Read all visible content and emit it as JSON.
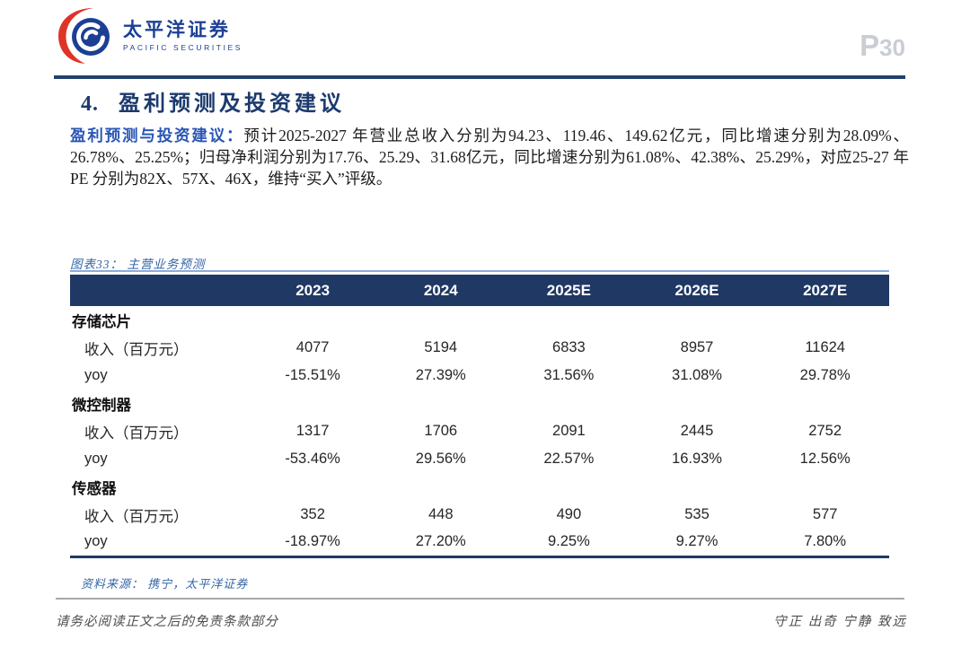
{
  "header": {
    "logo": {
      "cn": "太平洋证券",
      "en": "PACIFIC SECURITIES"
    },
    "page": {
      "prefix": "P",
      "number": "30"
    }
  },
  "title": {
    "number": "4.",
    "text": "盈利预测及投资建议"
  },
  "summary": {
    "lead": "盈利预测与投资建议：",
    "body": "预计2025-2027 年营业总收入分别为94.23、119.46、149.62亿元，同比增速分别为28.09%、26.78%、25.25%；归母净利润分别为17.76、25.29、31.68亿元，同比增速分别为61.08%、42.38%、25.29%，对应25-27 年PE 分别为82X、57X、46X，维持“买入”评级。"
  },
  "figure": {
    "caption": "图表33： 主营业务预测",
    "source": "资料来源： 携宁，太平洋证券"
  },
  "chart_data": {
    "type": "table",
    "title": "主营业务预测",
    "columns": [
      "",
      "2023",
      "2024",
      "2025E",
      "2026E",
      "2027E"
    ],
    "rows": [
      {
        "label": "存储芯片",
        "type": "category",
        "values": [
          "",
          "",
          "",
          "",
          ""
        ]
      },
      {
        "label": "收入（百万元）",
        "type": "data",
        "values": [
          "4077",
          "5194",
          "6833",
          "8957",
          "11624"
        ]
      },
      {
        "label": "yoy",
        "type": "data",
        "values": [
          "-15.51%",
          "27.39%",
          "31.56%",
          "31.08%",
          "29.78%"
        ]
      },
      {
        "label": "微控制器",
        "type": "category",
        "values": [
          "",
          "",
          "",
          "",
          ""
        ]
      },
      {
        "label": "收入（百万元）",
        "type": "data",
        "values": [
          "1317",
          "1706",
          "2091",
          "2445",
          "2752"
        ]
      },
      {
        "label": "yoy",
        "type": "data",
        "values": [
          "-53.46%",
          "29.56%",
          "22.57%",
          "16.93%",
          "12.56%"
        ]
      },
      {
        "label": "传感器",
        "type": "category",
        "values": [
          "",
          "",
          "",
          "",
          ""
        ]
      },
      {
        "label": "收入（百万元）",
        "type": "data",
        "values": [
          "352",
          "448",
          "490",
          "535",
          "577"
        ]
      },
      {
        "label": "yoy",
        "type": "data",
        "values": [
          "-18.97%",
          "27.20%",
          "9.25%",
          "9.27%",
          "7.80%"
        ]
      }
    ]
  },
  "footer": {
    "left": "请务必阅读正文之后的免责条款部分",
    "right": "守正 出奇 宁静 致远"
  },
  "colors": {
    "navy": "#1f3864",
    "lead_blue": "#2a56b5",
    "caption_blue": "#3465a4",
    "footer_gray": "#4d4d4d",
    "page_gray": "#c9cdd5",
    "logo_red": "#de3428",
    "logo_blue": "#1c3f94",
    "table_topline": "#8faadc"
  }
}
